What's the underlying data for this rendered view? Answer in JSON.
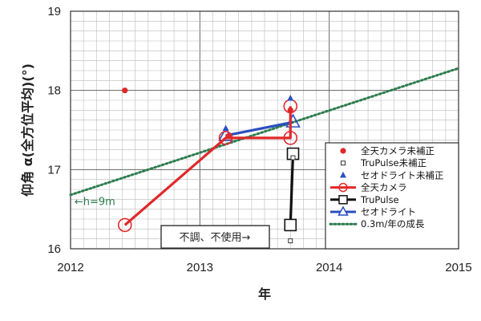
{
  "chart_data": {
    "type": "scatter",
    "title": "",
    "xlabel": "年",
    "ylabel": "仰角 α(全方位平均)(°)",
    "xlim": [
      2012,
      2015
    ],
    "ylim": [
      16,
      19
    ],
    "x_ticks": [
      "2012",
      "2013",
      "2014",
      "2015"
    ],
    "y_ticks": [
      "16",
      "17",
      "18",
      "19"
    ],
    "grid": true,
    "legend_position": "bottom-right",
    "series": [
      {
        "name": "全天カメラ未補正",
        "kind": "dots",
        "color": "#e0282a",
        "marker": "circle-filled",
        "points": [
          [
            2012.42,
            18.0
          ],
          [
            2013.22,
            17.42
          ],
          [
            2013.7,
            17.75
          ]
        ]
      },
      {
        "name": "TruPulse未補正",
        "kind": "dots",
        "color": "#333333",
        "marker": "square-small",
        "points": [
          [
            2013.7,
            16.1
          ],
          [
            2013.72,
            17.15
          ]
        ]
      },
      {
        "name": "セオドライト未補正",
        "kind": "dots",
        "color": "#2b4fbf",
        "marker": "triangle-filled",
        "points": [
          [
            2013.2,
            17.52
          ],
          [
            2013.7,
            17.9
          ]
        ]
      },
      {
        "name": "全天カメラ",
        "kind": "line-marker",
        "color": "#e0282a",
        "marker": "circle-open",
        "points": [
          [
            2012.42,
            16.3
          ],
          [
            2013.2,
            17.4
          ],
          [
            2013.7,
            17.4
          ],
          [
            2013.7,
            17.8
          ]
        ]
      },
      {
        "name": "TruPulse",
        "kind": "line-marker",
        "color": "#111111",
        "marker": "square-open",
        "points": [
          [
            2013.7,
            16.3
          ],
          [
            2013.72,
            17.2
          ]
        ]
      },
      {
        "name": "セオドライト",
        "kind": "line-marker",
        "color": "#2b4fbf",
        "marker": "triangle-open",
        "points": [
          [
            2013.2,
            17.43
          ],
          [
            2013.72,
            17.6
          ]
        ]
      },
      {
        "name": "0.3m/年の成長",
        "kind": "dotted-line",
        "color": "#2e7d4f",
        "points": [
          [
            2012,
            16.68
          ],
          [
            2015,
            18.28
          ]
        ]
      }
    ],
    "annotations": [
      {
        "text": "←h=9m",
        "x": 2012.03,
        "y": 16.55
      },
      {
        "text": "不調、不使用→",
        "x": 2012.75,
        "y": 16.1,
        "boxed": true
      }
    ]
  }
}
